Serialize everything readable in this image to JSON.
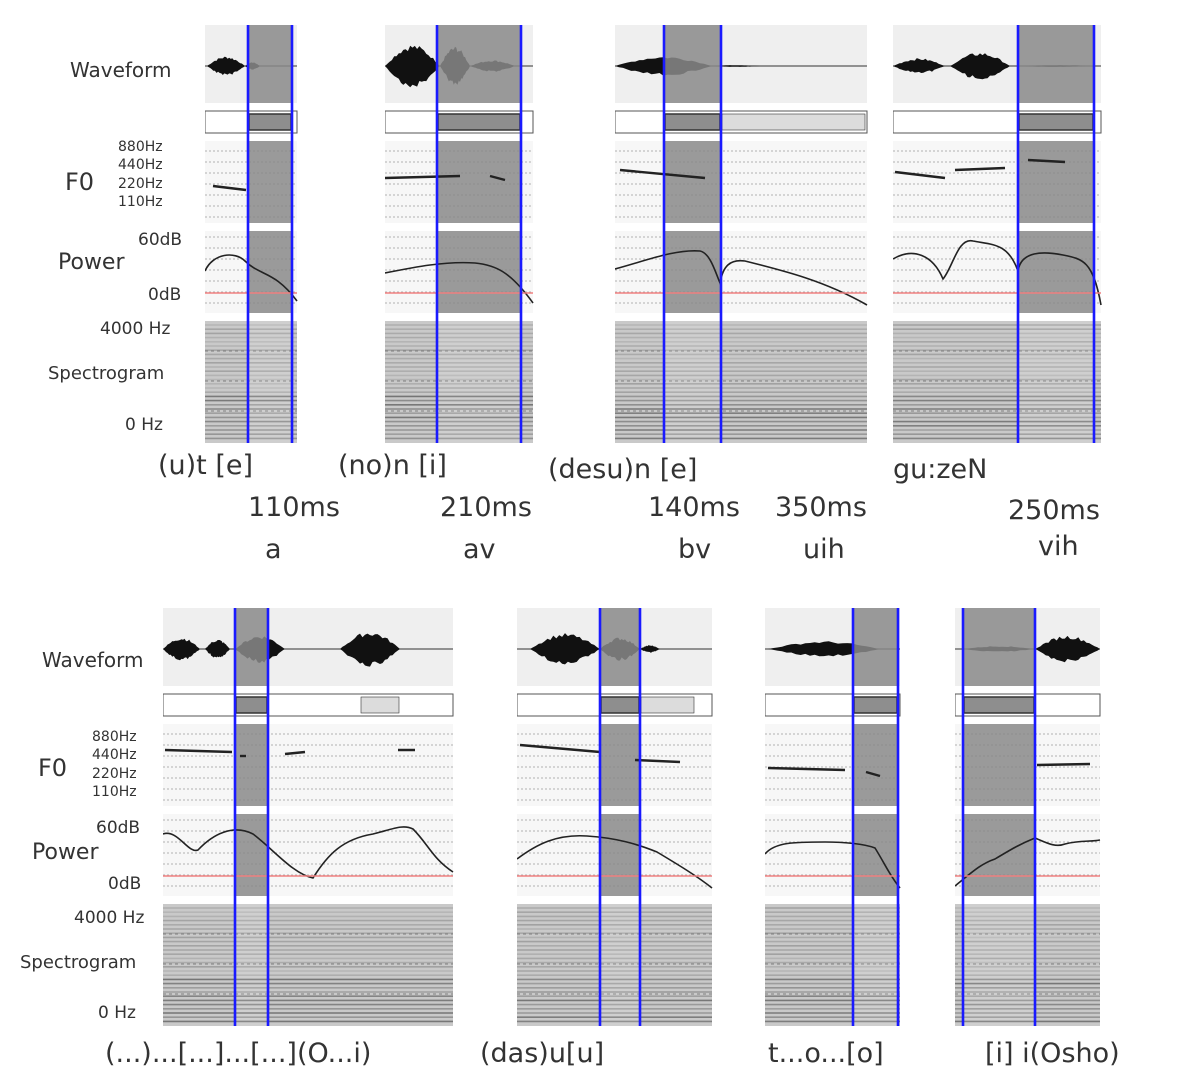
{
  "row_labels": {
    "waveform": "Waveform",
    "f0": "F0",
    "f0_ticks": [
      "880Hz",
      "440Hz",
      "220Hz",
      "110Hz"
    ],
    "power": "Power",
    "power_ticks": [
      "60dB",
      "0dB"
    ],
    "spec_ticks": [
      "4000 Hz",
      "Spectrogram",
      "0 Hz"
    ]
  },
  "top_row": {
    "captions": [
      "(u)t  [e]",
      "(no)n  [i]",
      "(desu)n [e]",
      "gu:zeN"
    ],
    "durations": [
      "110ms",
      "210ms",
      "140ms",
      "350ms",
      "250ms"
    ],
    "codes": [
      "a",
      "av",
      "bv",
      "uih",
      "vih"
    ]
  },
  "bottom_row": {
    "captions": [
      "(...)...[...]...[...](O...i)",
      "(das)u[u]",
      "t...o...[o]",
      "[i] i(Osho)"
    ]
  },
  "colors": {
    "panel_bg": "#efefef",
    "highlight": "#8a8a8a",
    "boundary": "#1a1aff",
    "zero_line": "#f08080",
    "trace": "#222222"
  }
}
